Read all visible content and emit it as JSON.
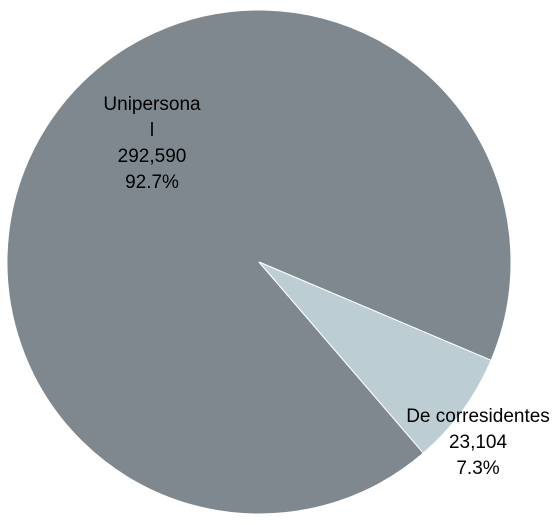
{
  "chart_data": {
    "type": "pie",
    "categories": [
      "Unipersonal",
      "De corresidentes"
    ],
    "values": [
      292590,
      23104
    ],
    "value_labels": [
      "292,590",
      "23,104"
    ],
    "percents": [
      92.7,
      7.3
    ],
    "percent_labels": [
      "92.7%",
      "7.3%"
    ],
    "colors": [
      "#7f888e",
      "#bccdd4"
    ]
  }
}
